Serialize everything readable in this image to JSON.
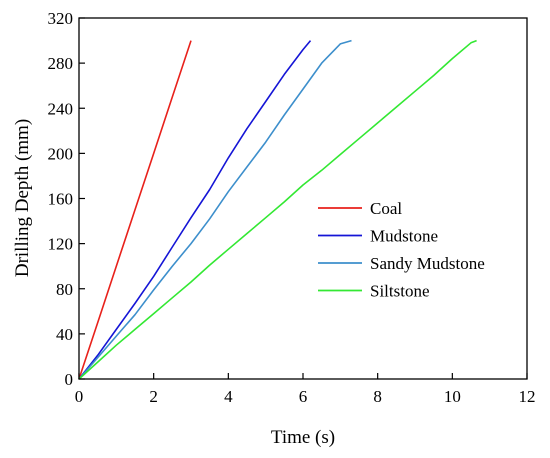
{
  "chart_data": {
    "type": "line",
    "title": "",
    "xlabel": "Time (s)",
    "ylabel": "Drilling Depth (mm)",
    "xlim": [
      0,
      12
    ],
    "ylim": [
      0,
      320
    ],
    "xticks": [
      "0",
      "2",
      "4",
      "6",
      "8",
      "10",
      "12"
    ],
    "yticks": [
      "0",
      "40",
      "80",
      "120",
      "160",
      "200",
      "240",
      "280",
      "320"
    ],
    "grid": false,
    "legend_position": "center-right",
    "series": [
      {
        "name": "Coal",
        "color": "#e8211b",
        "x": [
          0,
          0.5,
          1.0,
          1.5,
          2.0,
          2.5,
          3.0
        ],
        "y": [
          0,
          50,
          100,
          150,
          200,
          250,
          300
        ]
      },
      {
        "name": "Mudstone",
        "color": "#1515d6",
        "x": [
          0,
          0.5,
          1.0,
          1.5,
          2.0,
          2.5,
          3.0,
          3.5,
          4.0,
          4.5,
          5.0,
          5.5,
          6.0,
          6.2
        ],
        "y": [
          0,
          21,
          44,
          67,
          91,
          117,
          143,
          168,
          196,
          222,
          246,
          270,
          292,
          300
        ]
      },
      {
        "name": "Sandy Mudstone",
        "color": "#3d8fcc",
        "x": [
          0,
          0.5,
          1.0,
          1.5,
          2.0,
          2.5,
          3.0,
          3.5,
          4.0,
          4.5,
          5.0,
          5.5,
          6.0,
          6.5,
          7.0,
          7.3
        ],
        "y": [
          0,
          19,
          38,
          57,
          79,
          100,
          120,
          142,
          166,
          188,
          210,
          234,
          257,
          280,
          297,
          300
        ]
      },
      {
        "name": "Siltstone",
        "color": "#33e833",
        "x": [
          0,
          0.5,
          1.0,
          1.5,
          2.0,
          2.5,
          3.0,
          3.5,
          4.0,
          4.5,
          5.0,
          5.5,
          6.0,
          6.5,
          7.0,
          7.5,
          8.0,
          8.5,
          9.0,
          9.5,
          10.0,
          10.5,
          10.65
        ],
        "y": [
          0,
          15,
          30,
          44,
          58,
          72,
          86,
          101,
          115,
          129,
          143,
          157,
          172,
          185,
          199,
          213,
          227,
          241,
          255,
          269,
          284,
          298,
          300
        ]
      }
    ]
  }
}
